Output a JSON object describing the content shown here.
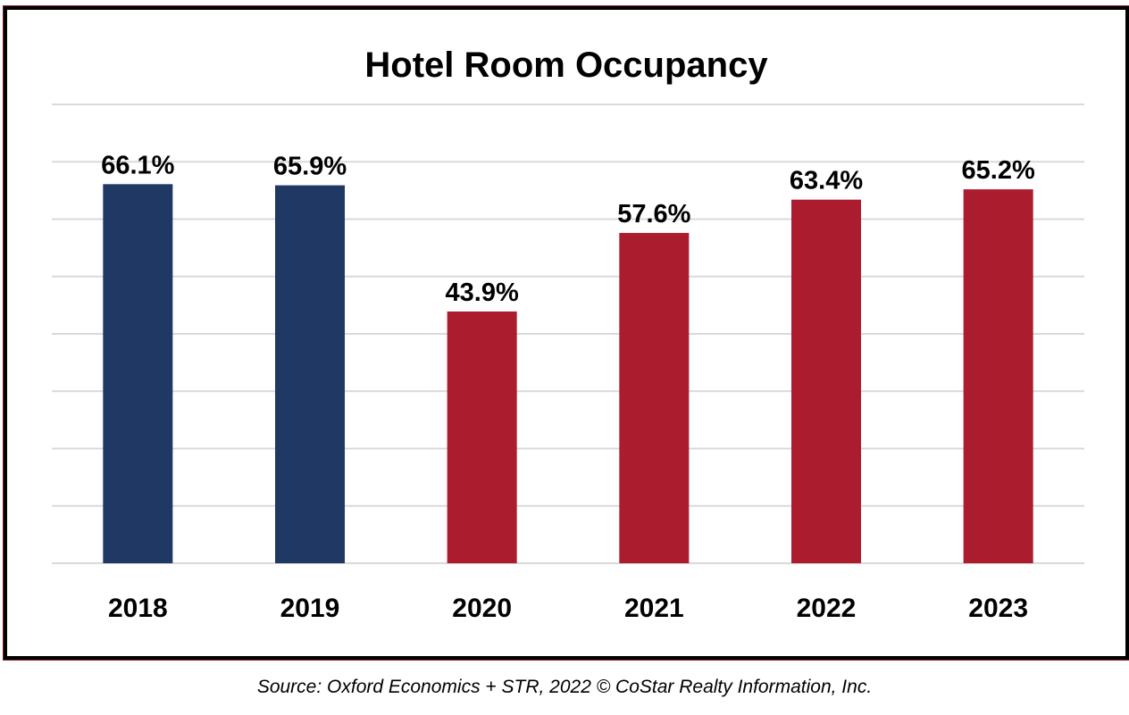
{
  "chart_data": {
    "type": "bar",
    "title": "Hotel Room Occupancy",
    "categories": [
      "2018",
      "2019",
      "2020",
      "2021",
      "2022",
      "2023"
    ],
    "values": [
      66.1,
      65.9,
      43.9,
      57.6,
      63.4,
      65.2
    ],
    "value_labels": [
      "66.1%",
      "65.9%",
      "43.9%",
      "57.6%",
      "63.4%",
      "65.2%"
    ],
    "bar_colors": [
      "#203864",
      "#203864",
      "#ab1c2f",
      "#ab1c2f",
      "#ab1c2f",
      "#ab1c2f"
    ],
    "ylim": [
      0,
      80
    ],
    "grid": true,
    "xlabel": "",
    "ylabel": ""
  },
  "source_note": "Source: Oxford Economics + STR, 2022 © CoStar Realty Information, Inc.",
  "colors": {
    "history": "#203864",
    "forecast": "#ab1c2f",
    "frame": "#000000",
    "grid": "#d9d9d9"
  }
}
